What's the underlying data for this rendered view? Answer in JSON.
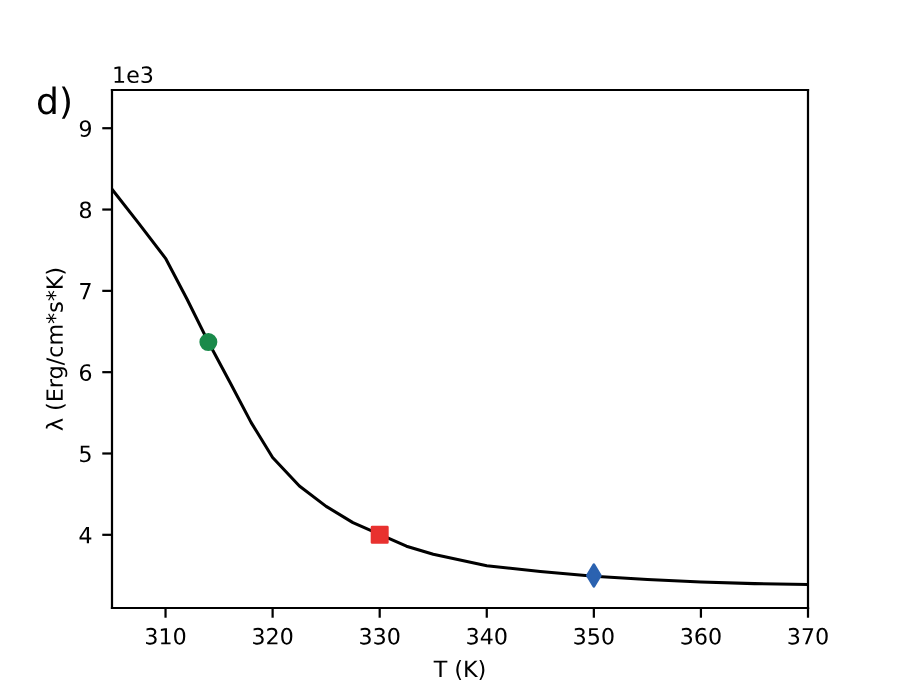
{
  "chart_data": {
    "type": "line",
    "xlabel": "T (K)",
    "ylabel": "λ (Erg/cm*s*K)",
    "annotations": [
      "d)",
      "1e3"
    ],
    "xlim": [
      305,
      370
    ],
    "xticks": [
      310,
      320,
      330,
      340,
      350,
      360,
      370
    ],
    "ylim": [
      3.1,
      9.47
    ],
    "yticks": [
      4,
      5,
      6,
      7,
      8,
      9
    ],
    "grid": false,
    "legend": false,
    "series": [
      {
        "color": "#000000",
        "marker": "none",
        "x": [
          305,
          307.5,
          310,
          312,
          314,
          316,
          318,
          320,
          322.5,
          325,
          327.5,
          332.5,
          335,
          340,
          345,
          350,
          355,
          360,
          365,
          370
        ],
        "values": [
          8.25,
          7.83,
          7.4,
          6.9,
          6.37,
          5.88,
          5.38,
          4.95,
          4.6,
          4.35,
          4.15,
          3.86,
          3.76,
          3.62,
          3.55,
          3.49,
          3.45,
          3.42,
          3.4,
          3.39
        ]
      },
      {
        "type": "scatter",
        "color": "#1a8a4a",
        "marker": "circle",
        "x": [
          314
        ],
        "values": [
          6.37
        ]
      },
      {
        "type": "scatter",
        "color": "#e8312f",
        "marker": "square",
        "x": [
          330
        ],
        "values": [
          4.0
        ]
      },
      {
        "type": "scatter",
        "color": "#2b62b0",
        "marker": "diamond",
        "x": [
          350
        ],
        "values": [
          3.5
        ]
      }
    ]
  }
}
